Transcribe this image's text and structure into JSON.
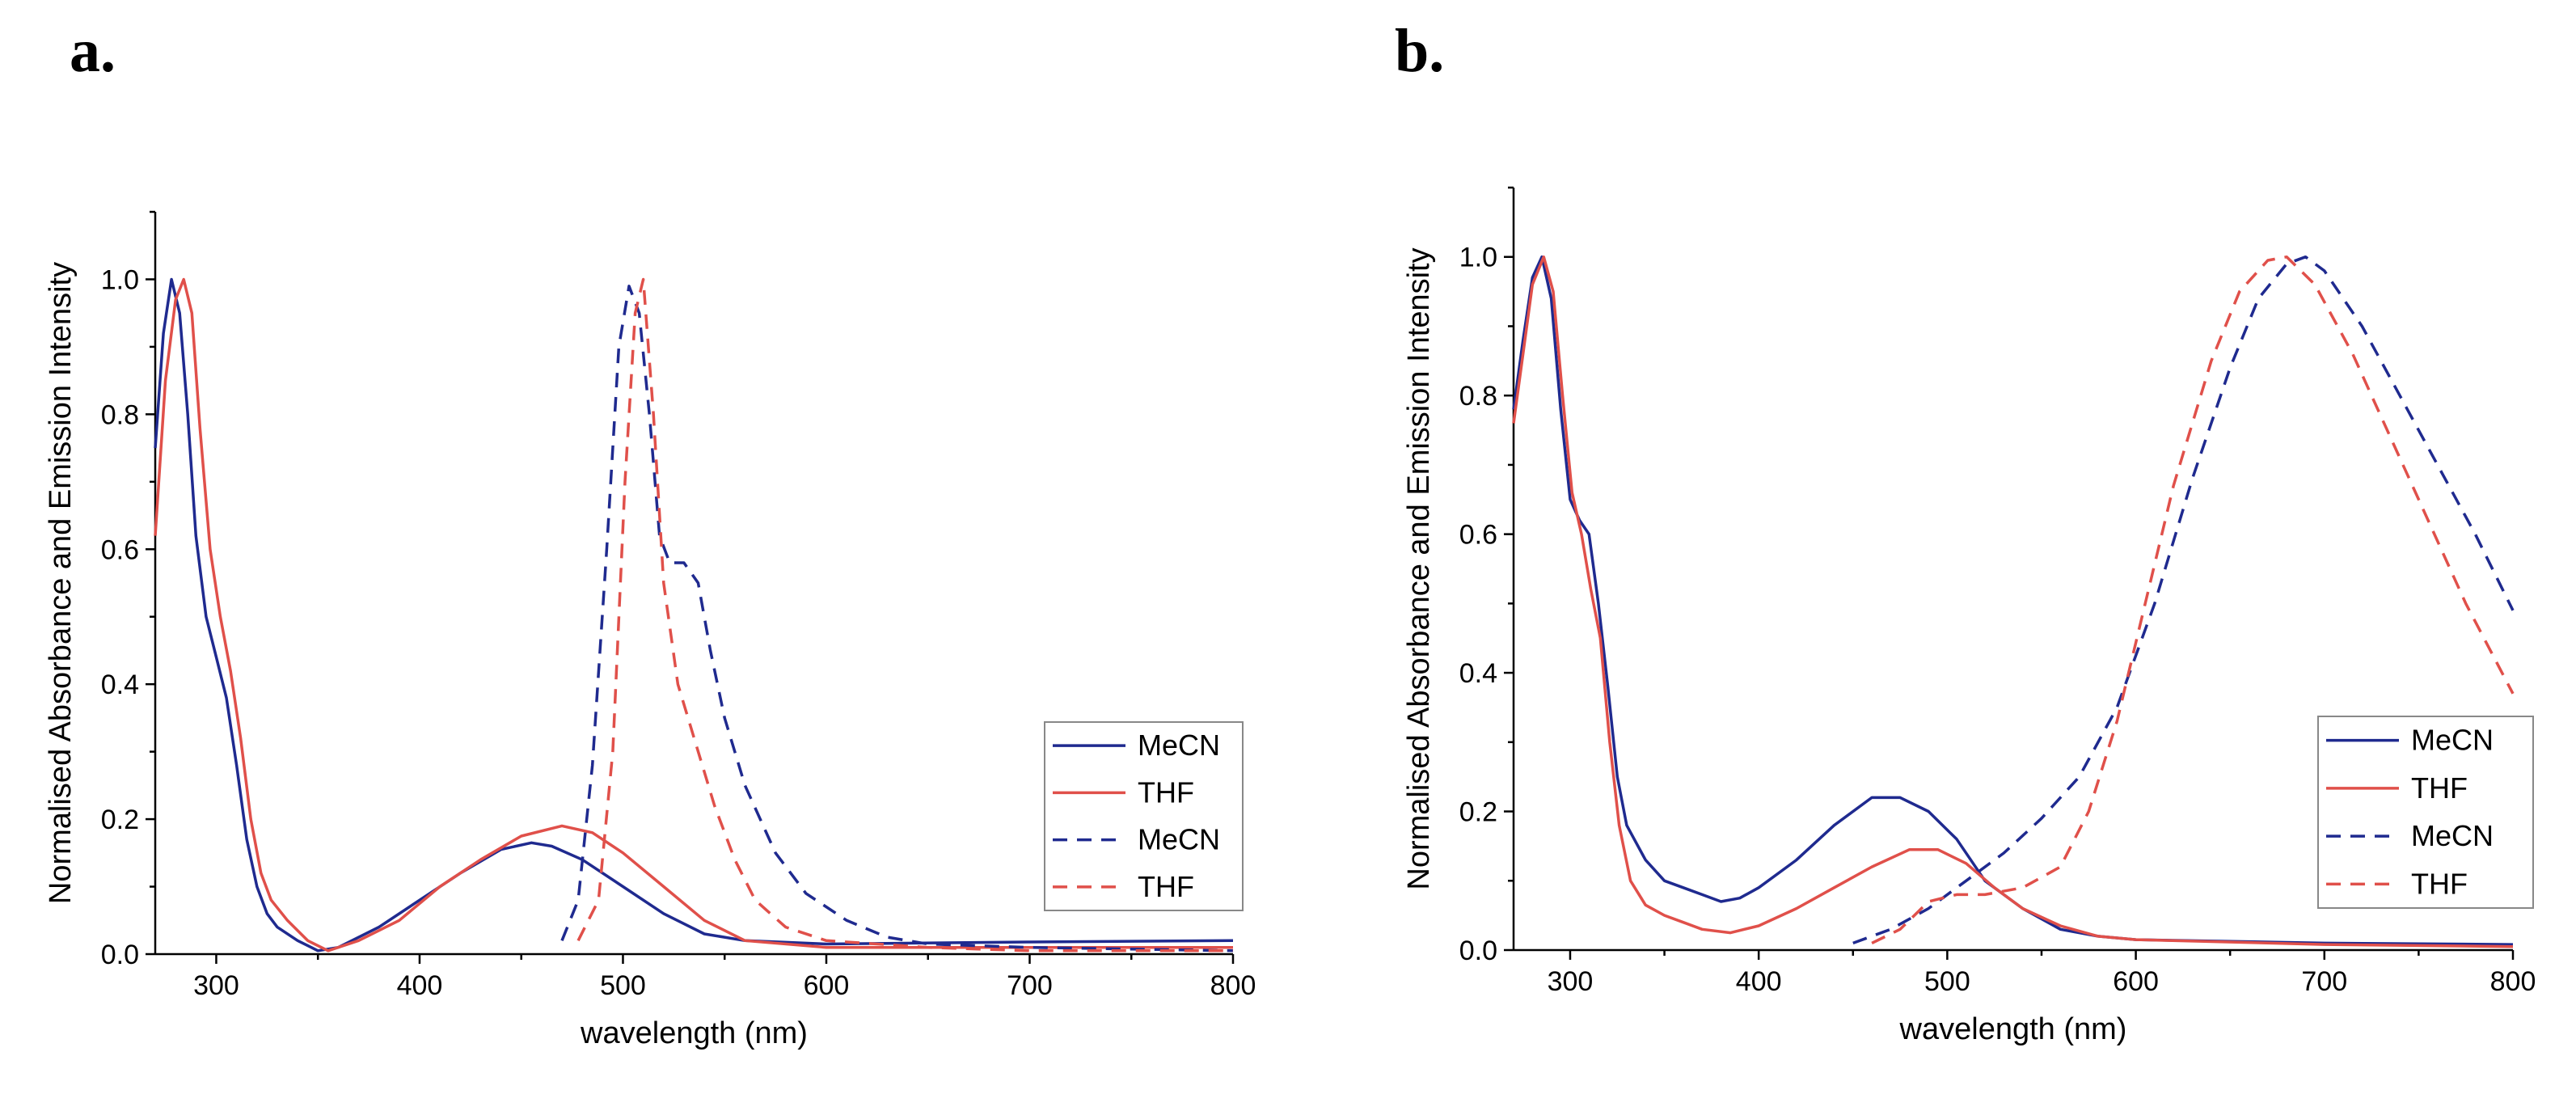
{
  "panels": [
    {
      "label": "a."
    },
    {
      "label": "b."
    }
  ],
  "colors": {
    "MeCN": "#1f2a8f",
    "THF": "#e0504a"
  },
  "chart_data": [
    {
      "type": "line",
      "panel": "a.",
      "xlabel": "wavelength (nm)",
      "ylabel": "Normalised Absorbance and Emission Intensity",
      "xlim": [
        270,
        800
      ],
      "ylim": [
        0,
        1.1
      ],
      "xticks": [
        "300",
        "400",
        "500",
        "600",
        "700",
        "800"
      ],
      "yticks": [
        "0.0",
        "0.2",
        "0.4",
        "0.6",
        "0.8",
        "1.0"
      ],
      "legend_position": "right",
      "series": [
        {
          "name": "MeCN",
          "style": "solid",
          "color": "#1f2a8f",
          "points": [
            [
              270,
              0.75
            ],
            [
              274,
              0.92
            ],
            [
              278,
              1.0
            ],
            [
              282,
              0.95
            ],
            [
              286,
              0.8
            ],
            [
              290,
              0.62
            ],
            [
              295,
              0.5
            ],
            [
              300,
              0.44
            ],
            [
              305,
              0.38
            ],
            [
              310,
              0.28
            ],
            [
              315,
              0.17
            ],
            [
              320,
              0.1
            ],
            [
              325,
              0.06
            ],
            [
              330,
              0.04
            ],
            [
              340,
              0.02
            ],
            [
              350,
              0.005
            ],
            [
              360,
              0.01
            ],
            [
              380,
              0.04
            ],
            [
              400,
              0.08
            ],
            [
              420,
              0.12
            ],
            [
              440,
              0.155
            ],
            [
              455,
              0.165
            ],
            [
              465,
              0.16
            ],
            [
              480,
              0.14
            ],
            [
              500,
              0.1
            ],
            [
              520,
              0.06
            ],
            [
              540,
              0.03
            ],
            [
              560,
              0.02
            ],
            [
              600,
              0.015
            ],
            [
              700,
              0.018
            ],
            [
              800,
              0.02
            ]
          ]
        },
        {
          "name": "THF",
          "style": "solid",
          "color": "#e0504a",
          "points": [
            [
              270,
              0.62
            ],
            [
              275,
              0.85
            ],
            [
              280,
              0.97
            ],
            [
              284,
              1.0
            ],
            [
              288,
              0.95
            ],
            [
              292,
              0.78
            ],
            [
              297,
              0.6
            ],
            [
              302,
              0.5
            ],
            [
              307,
              0.42
            ],
            [
              312,
              0.32
            ],
            [
              317,
              0.2
            ],
            [
              322,
              0.12
            ],
            [
              327,
              0.08
            ],
            [
              335,
              0.05
            ],
            [
              345,
              0.02
            ],
            [
              355,
              0.005
            ],
            [
              370,
              0.02
            ],
            [
              390,
              0.05
            ],
            [
              410,
              0.1
            ],
            [
              430,
              0.14
            ],
            [
              450,
              0.175
            ],
            [
              470,
              0.19
            ],
            [
              485,
              0.18
            ],
            [
              500,
              0.15
            ],
            [
              520,
              0.1
            ],
            [
              540,
              0.05
            ],
            [
              560,
              0.02
            ],
            [
              600,
              0.01
            ],
            [
              700,
              0.01
            ],
            [
              800,
              0.01
            ]
          ]
        },
        {
          "name": "MeCN",
          "style": "dashed",
          "color": "#1f2a8f",
          "points": [
            [
              470,
              0.02
            ],
            [
              478,
              0.08
            ],
            [
              485,
              0.28
            ],
            [
              492,
              0.6
            ],
            [
              498,
              0.9
            ],
            [
              503,
              0.99
            ],
            [
              508,
              0.95
            ],
            [
              513,
              0.8
            ],
            [
              518,
              0.62
            ],
            [
              523,
              0.58
            ],
            [
              530,
              0.58
            ],
            [
              537,
              0.55
            ],
            [
              543,
              0.45
            ],
            [
              550,
              0.35
            ],
            [
              560,
              0.25
            ],
            [
              575,
              0.15
            ],
            [
              590,
              0.09
            ],
            [
              610,
              0.05
            ],
            [
              630,
              0.025
            ],
            [
              650,
              0.015
            ],
            [
              700,
              0.01
            ],
            [
              800,
              0.005
            ]
          ]
        },
        {
          "name": "THF",
          "style": "dashed",
          "color": "#e0504a",
          "points": [
            [
              478,
              0.02
            ],
            [
              488,
              0.08
            ],
            [
              495,
              0.3
            ],
            [
              501,
              0.7
            ],
            [
              506,
              0.95
            ],
            [
              510,
              1.0
            ],
            [
              515,
              0.8
            ],
            [
              520,
              0.55
            ],
            [
              527,
              0.4
            ],
            [
              535,
              0.32
            ],
            [
              545,
              0.22
            ],
            [
              555,
              0.14
            ],
            [
              565,
              0.08
            ],
            [
              580,
              0.04
            ],
            [
              600,
              0.02
            ],
            [
              650,
              0.01
            ],
            [
              700,
              0.005
            ],
            [
              800,
              0.005
            ]
          ]
        }
      ]
    },
    {
      "type": "line",
      "panel": "b.",
      "xlabel": "wavelength (nm)",
      "ylabel": "Normalised Absorbance and Emission Intensity",
      "xlim": [
        270,
        800
      ],
      "ylim": [
        0,
        1.1
      ],
      "xticks": [
        "300",
        "400",
        "500",
        "600",
        "700",
        "800"
      ],
      "yticks": [
        "0.0",
        "0.2",
        "0.4",
        "0.6",
        "0.8",
        "1.0"
      ],
      "legend_position": "right",
      "series": [
        {
          "name": "MeCN",
          "style": "solid",
          "color": "#1f2a8f",
          "points": [
            [
              270,
              0.78
            ],
            [
              275,
              0.88
            ],
            [
              280,
              0.97
            ],
            [
              285,
              1.0
            ],
            [
              290,
              0.94
            ],
            [
              295,
              0.78
            ],
            [
              300,
              0.65
            ],
            [
              305,
              0.62
            ],
            [
              310,
              0.6
            ],
            [
              315,
              0.5
            ],
            [
              320,
              0.38
            ],
            [
              325,
              0.25
            ],
            [
              330,
              0.18
            ],
            [
              340,
              0.13
            ],
            [
              350,
              0.1
            ],
            [
              360,
              0.09
            ],
            [
              370,
              0.08
            ],
            [
              380,
              0.07
            ],
            [
              390,
              0.075
            ],
            [
              400,
              0.09
            ],
            [
              420,
              0.13
            ],
            [
              440,
              0.18
            ],
            [
              460,
              0.22
            ],
            [
              475,
              0.22
            ],
            [
              490,
              0.2
            ],
            [
              505,
              0.16
            ],
            [
              520,
              0.1
            ],
            [
              540,
              0.06
            ],
            [
              560,
              0.03
            ],
            [
              580,
              0.02
            ],
            [
              600,
              0.015
            ],
            [
              700,
              0.01
            ],
            [
              800,
              0.008
            ]
          ]
        },
        {
          "name": "THF",
          "style": "solid",
          "color": "#e0504a",
          "points": [
            [
              270,
              0.76
            ],
            [
              275,
              0.86
            ],
            [
              280,
              0.96
            ],
            [
              286,
              1.0
            ],
            [
              291,
              0.95
            ],
            [
              296,
              0.8
            ],
            [
              301,
              0.66
            ],
            [
              306,
              0.6
            ],
            [
              311,
              0.52
            ],
            [
              316,
              0.45
            ],
            [
              321,
              0.3
            ],
            [
              326,
              0.18
            ],
            [
              332,
              0.1
            ],
            [
              340,
              0.065
            ],
            [
              350,
              0.05
            ],
            [
              360,
              0.04
            ],
            [
              370,
              0.03
            ],
            [
              385,
              0.025
            ],
            [
              400,
              0.035
            ],
            [
              420,
              0.06
            ],
            [
              440,
              0.09
            ],
            [
              460,
              0.12
            ],
            [
              480,
              0.145
            ],
            [
              495,
              0.145
            ],
            [
              510,
              0.125
            ],
            [
              525,
              0.09
            ],
            [
              540,
              0.06
            ],
            [
              560,
              0.035
            ],
            [
              580,
              0.02
            ],
            [
              600,
              0.015
            ],
            [
              700,
              0.008
            ],
            [
              800,
              0.005
            ]
          ]
        },
        {
          "name": "MeCN",
          "style": "dashed",
          "color": "#1f2a8f",
          "points": [
            [
              450,
              0.01
            ],
            [
              470,
              0.03
            ],
            [
              490,
              0.06
            ],
            [
              510,
              0.1
            ],
            [
              530,
              0.14
            ],
            [
              550,
              0.19
            ],
            [
              570,
              0.25
            ],
            [
              590,
              0.35
            ],
            [
              610,
              0.5
            ],
            [
              630,
              0.68
            ],
            [
              650,
              0.84
            ],
            [
              665,
              0.94
            ],
            [
              680,
              0.99
            ],
            [
              690,
              1.0
            ],
            [
              700,
              0.98
            ],
            [
              720,
              0.9
            ],
            [
              740,
              0.8
            ],
            [
              760,
              0.7
            ],
            [
              780,
              0.6
            ],
            [
              800,
              0.49
            ]
          ]
        },
        {
          "name": "THF",
          "style": "dashed",
          "color": "#e0504a",
          "points": [
            [
              460,
              0.01
            ],
            [
              475,
              0.03
            ],
            [
              490,
              0.07
            ],
            [
              505,
              0.08
            ],
            [
              520,
              0.08
            ],
            [
              540,
              0.09
            ],
            [
              560,
              0.12
            ],
            [
              575,
              0.2
            ],
            [
              590,
              0.33
            ],
            [
              605,
              0.5
            ],
            [
              620,
              0.67
            ],
            [
              640,
              0.85
            ],
            [
              655,
              0.95
            ],
            [
              670,
              0.995
            ],
            [
              680,
              1.0
            ],
            [
              695,
              0.96
            ],
            [
              715,
              0.86
            ],
            [
              735,
              0.74
            ],
            [
              755,
              0.62
            ],
            [
              775,
              0.5
            ],
            [
              800,
              0.37
            ]
          ]
        }
      ]
    }
  ]
}
